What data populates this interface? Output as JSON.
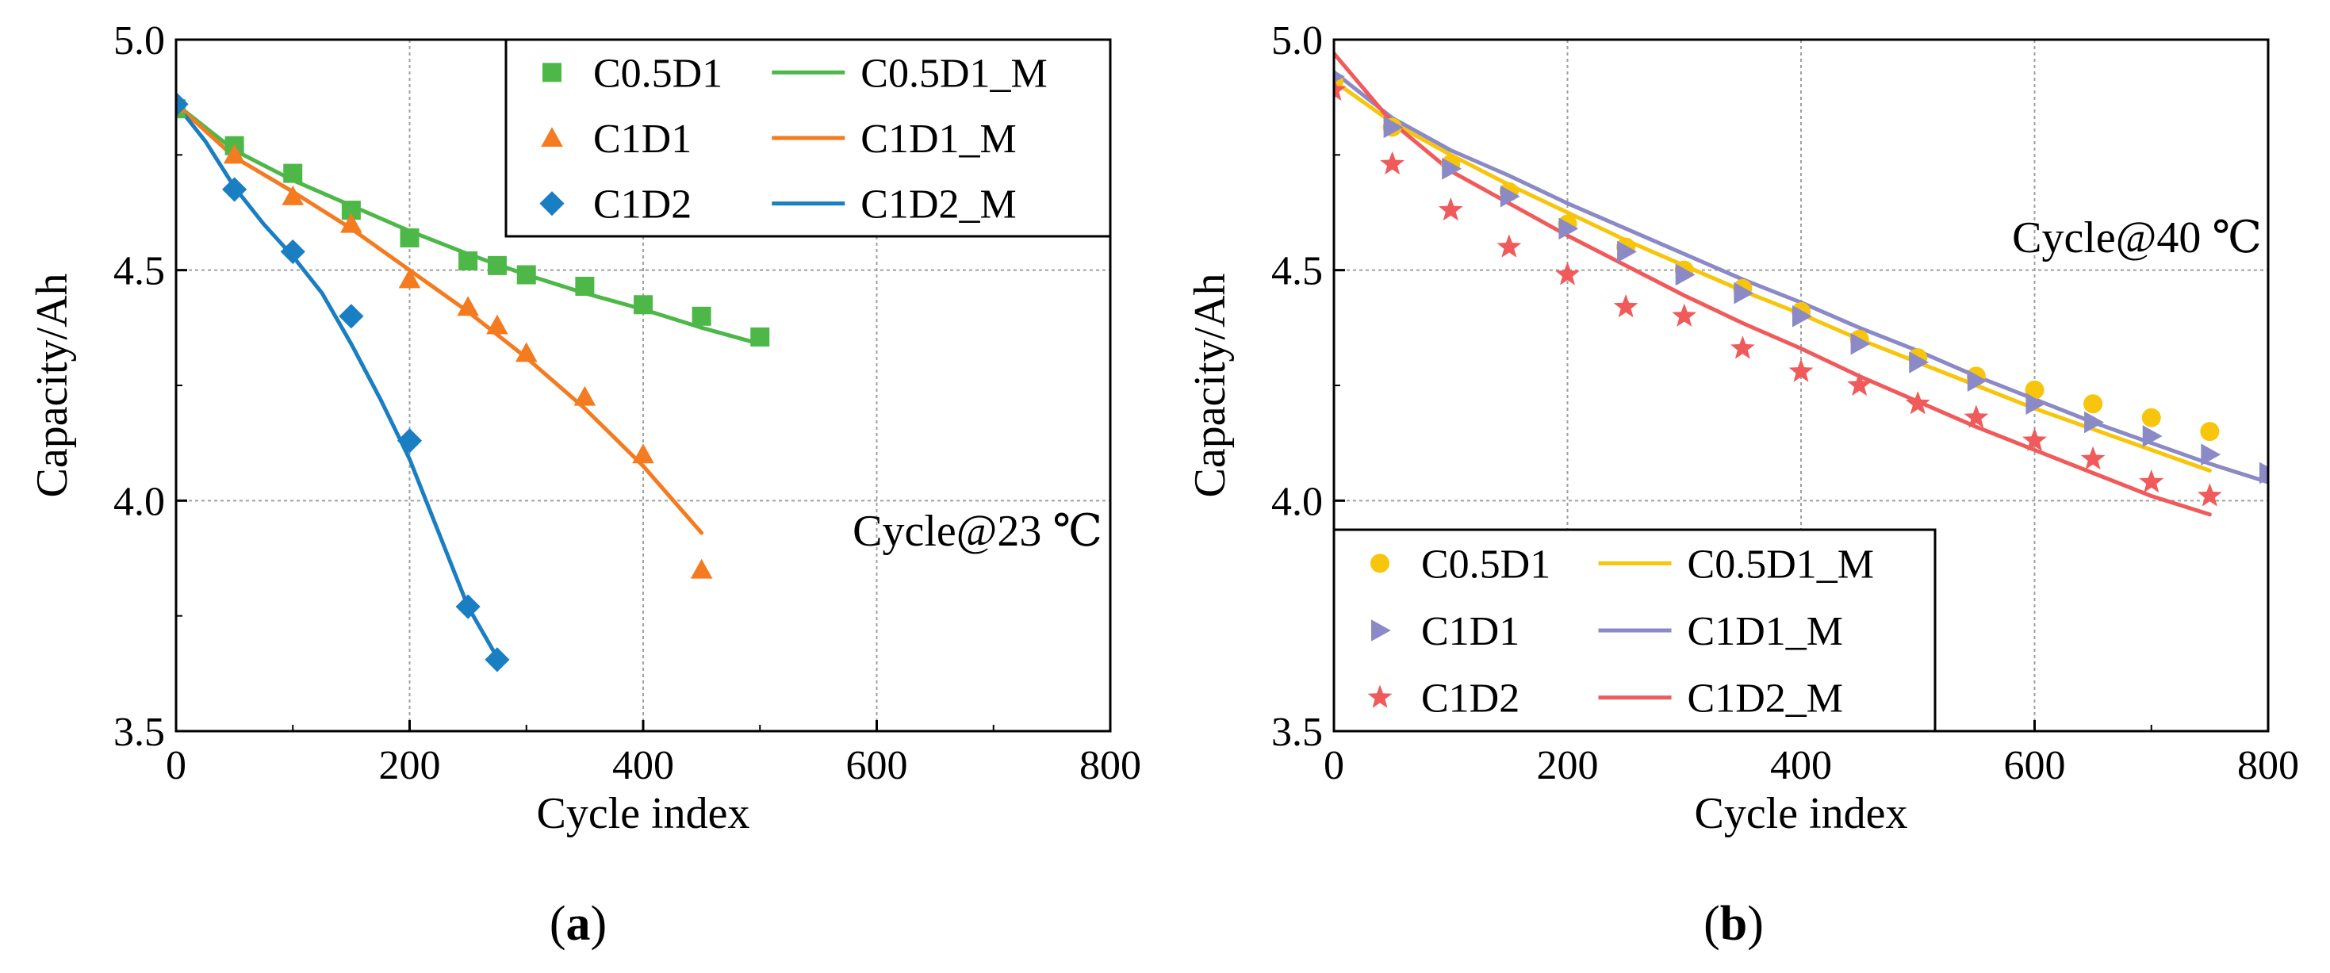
{
  "colors": {
    "green": "#4db848",
    "orange": "#f47b20",
    "blue": "#1a7ec2",
    "yellow": "#f6c50c",
    "purple": "#8b89c6",
    "red": "#f05a5b",
    "grid": "#a0a0a0",
    "axis": "#000000"
  },
  "chart_data": [
    {
      "id": "a",
      "type": "scatter",
      "panel_label": "a",
      "xlabel": "Cycle index",
      "ylabel": "Capacity/Ah",
      "xlim": [
        0,
        800
      ],
      "ylim": [
        3.5,
        5.0
      ],
      "x_ticks": [
        0,
        200,
        400,
        600,
        800
      ],
      "y_ticks": [
        3.5,
        4.0,
        4.5,
        5.0
      ],
      "x_tick_labels": [
        "0",
        "200",
        "400",
        "600",
        "800"
      ],
      "y_tick_labels": [
        "3.5",
        "4.0",
        "4.5",
        "5.0"
      ],
      "grid": true,
      "annotation": "Cycle@23 ℃",
      "legend_position": "top-right",
      "series": [
        {
          "name": "C0.5D1",
          "kind": "marker",
          "marker": "square",
          "color": "#4db848",
          "x": [
            0,
            50,
            100,
            150,
            200,
            250,
            275,
            300,
            350,
            400,
            450,
            500
          ],
          "y": [
            4.85,
            4.77,
            4.71,
            4.63,
            4.57,
            4.52,
            4.51,
            4.49,
            4.465,
            4.425,
            4.4,
            4.355
          ]
        },
        {
          "name": "C1D1",
          "kind": "marker",
          "marker": "triangle",
          "color": "#f47b20",
          "x": [
            0,
            50,
            100,
            150,
            200,
            250,
            275,
            300,
            350,
            400,
            450
          ],
          "y": [
            4.86,
            4.75,
            4.66,
            4.6,
            4.48,
            4.42,
            4.38,
            4.32,
            4.225,
            4.1,
            3.85
          ]
        },
        {
          "name": "C1D2",
          "kind": "marker",
          "marker": "diamond",
          "color": "#1a7ec2",
          "x": [
            0,
            50,
            100,
            150,
            200,
            250,
            275
          ],
          "y": [
            4.86,
            4.675,
            4.54,
            4.4,
            4.13,
            3.77,
            3.655
          ]
        },
        {
          "name": "C0.5D1_M",
          "kind": "line",
          "color": "#4db848",
          "x": [
            0,
            50,
            100,
            150,
            200,
            250,
            300,
            350,
            400,
            450,
            500
          ],
          "y": [
            4.86,
            4.76,
            4.695,
            4.64,
            4.585,
            4.535,
            4.49,
            4.45,
            4.415,
            4.375,
            4.34
          ]
        },
        {
          "name": "C1D1_M",
          "kind": "line",
          "color": "#f47b20",
          "x": [
            0,
            50,
            100,
            150,
            200,
            250,
            300,
            350,
            400,
            450
          ],
          "y": [
            4.86,
            4.745,
            4.67,
            4.59,
            4.5,
            4.41,
            4.31,
            4.2,
            4.075,
            3.93
          ]
        },
        {
          "name": "C1D2_M",
          "kind": "line",
          "color": "#1a7ec2",
          "x": [
            0,
            25,
            50,
            75,
            100,
            125,
            150,
            175,
            200,
            225,
            250,
            275
          ],
          "y": [
            4.86,
            4.78,
            4.68,
            4.6,
            4.53,
            4.45,
            4.34,
            4.22,
            4.09,
            3.93,
            3.77,
            3.66
          ]
        }
      ]
    },
    {
      "id": "b",
      "type": "scatter",
      "panel_label": "b",
      "xlabel": "Cycle index",
      "ylabel": "Capacity/Ah",
      "xlim": [
        0,
        800
      ],
      "ylim": [
        3.5,
        5.0
      ],
      "x_ticks": [
        0,
        200,
        400,
        600,
        800
      ],
      "y_ticks": [
        3.5,
        4.0,
        4.5,
        5.0
      ],
      "x_tick_labels": [
        "0",
        "200",
        "400",
        "600",
        "800"
      ],
      "y_tick_labels": [
        "3.5",
        "4.0",
        "4.5",
        "5.0"
      ],
      "grid": true,
      "annotation": "Cycle@40 ℃",
      "legend_position": "bottom-left",
      "series": [
        {
          "name": "C0.5D1",
          "kind": "marker",
          "marker": "circle",
          "color": "#f6c50c",
          "x": [
            0,
            50,
            100,
            150,
            200,
            250,
            300,
            350,
            400,
            450,
            500,
            550,
            600,
            650,
            700,
            750
          ],
          "y": [
            4.91,
            4.81,
            4.73,
            4.67,
            4.6,
            4.55,
            4.5,
            4.46,
            4.41,
            4.35,
            4.31,
            4.27,
            4.24,
            4.21,
            4.18,
            4.15
          ]
        },
        {
          "name": "C1D1",
          "kind": "marker",
          "marker": "triangle-right",
          "color": "#8b89c6",
          "x": [
            0,
            50,
            100,
            150,
            200,
            250,
            300,
            350,
            400,
            450,
            500,
            550,
            600,
            650,
            700,
            750,
            800
          ],
          "y": [
            4.92,
            4.81,
            4.72,
            4.66,
            4.59,
            4.54,
            4.49,
            4.45,
            4.4,
            4.34,
            4.3,
            4.26,
            4.21,
            4.17,
            4.14,
            4.1,
            4.06
          ]
        },
        {
          "name": "C1D2",
          "kind": "marker",
          "marker": "star",
          "color": "#f05a5b",
          "x": [
            0,
            50,
            100,
            150,
            200,
            250,
            300,
            350,
            400,
            450,
            500,
            550,
            600,
            650,
            700,
            750
          ],
          "y": [
            4.89,
            4.73,
            4.63,
            4.55,
            4.49,
            4.42,
            4.4,
            4.33,
            4.28,
            4.25,
            4.21,
            4.18,
            4.13,
            4.09,
            4.04,
            4.01
          ]
        },
        {
          "name": "C0.5D1_M",
          "kind": "line",
          "color": "#f6c50c",
          "x": [
            0,
            50,
            100,
            150,
            200,
            250,
            300,
            350,
            400,
            450,
            500,
            550,
            600,
            650,
            700,
            750
          ],
          "y": [
            4.91,
            4.82,
            4.75,
            4.685,
            4.625,
            4.565,
            4.51,
            4.455,
            4.405,
            4.35,
            4.3,
            4.25,
            4.2,
            4.155,
            4.11,
            4.065
          ]
        },
        {
          "name": "C1D1_M",
          "kind": "line",
          "color": "#8b89c6",
          "x": [
            0,
            50,
            100,
            150,
            200,
            250,
            300,
            350,
            400,
            450,
            500,
            550,
            600,
            650,
            700,
            750,
            800
          ],
          "y": [
            4.93,
            4.83,
            4.76,
            4.705,
            4.645,
            4.59,
            4.535,
            4.48,
            4.43,
            4.375,
            4.325,
            4.27,
            4.22,
            4.17,
            4.125,
            4.08,
            4.04
          ]
        },
        {
          "name": "C1D2_M",
          "kind": "line",
          "color": "#f05a5b",
          "x": [
            0,
            50,
            100,
            150,
            200,
            250,
            300,
            350,
            400,
            450,
            500,
            550,
            600,
            650,
            700,
            750
          ],
          "y": [
            4.97,
            4.82,
            4.715,
            4.645,
            4.575,
            4.51,
            4.445,
            4.385,
            4.33,
            4.27,
            4.215,
            4.16,
            4.11,
            4.06,
            4.01,
            3.97
          ]
        }
      ]
    }
  ]
}
